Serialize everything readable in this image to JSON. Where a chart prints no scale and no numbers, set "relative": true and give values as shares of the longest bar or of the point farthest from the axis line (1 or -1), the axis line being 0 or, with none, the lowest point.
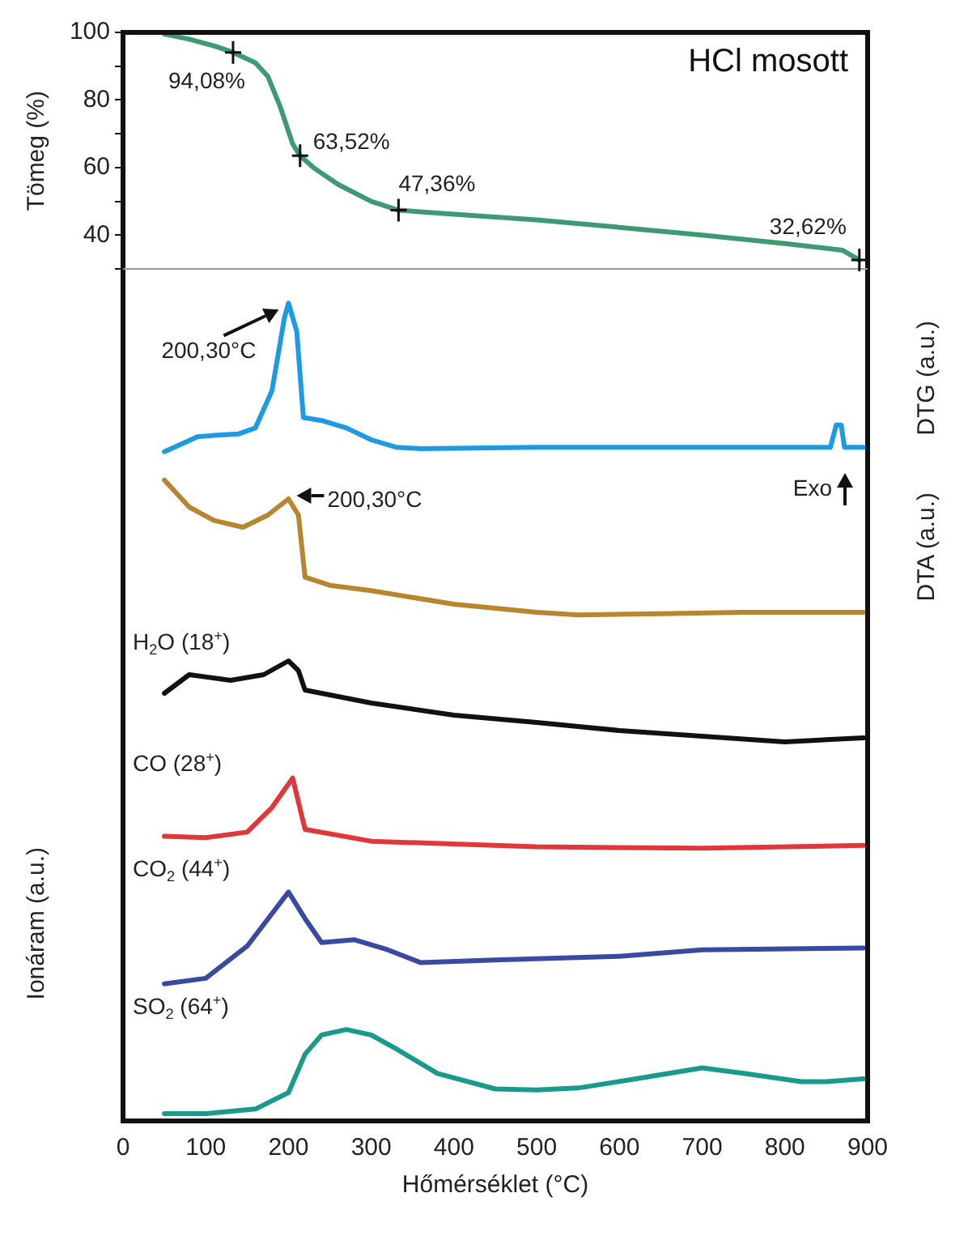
{
  "chart_data": [
    {
      "type": "line",
      "title": "HCl mosott",
      "ylabel": "Tömeg (%)",
      "marker": "none",
      "line_style": "solid",
      "tick_labels": "y",
      "xlim": [
        0,
        900
      ],
      "ylim": [
        30,
        100
      ],
      "yticks": [
        {
          "value": 30,
          "label": null
        },
        40,
        {
          "value": 50,
          "label": null
        },
        60,
        {
          "value": 70,
          "label": null
        },
        80,
        {
          "value": 90,
          "label": null
        },
        100
      ],
      "x": [
        50,
        80,
        110,
        133,
        160,
        175,
        190,
        205,
        214,
        230,
        260,
        300,
        333,
        400,
        500,
        600,
        700,
        800,
        870,
        890
      ],
      "series": [
        {
          "color": "#3e9a72",
          "values": [
            99.5,
            98,
            96,
            94.08,
            91,
            87,
            78,
            67,
            63.52,
            60,
            55,
            50,
            47.36,
            46.2,
            44.5,
            42.3,
            40,
            37.5,
            35.5,
            32.62
          ]
        }
      ],
      "annotations": [
        {
          "text": "94,08%",
          "x": 133,
          "y": 94.08
        },
        {
          "text": "63,52%",
          "x": 214,
          "y": 63.52
        },
        {
          "text": "47,36%",
          "x": 333,
          "y": 47.36
        },
        {
          "text": "32,62%",
          "x": 890,
          "y": 32.62
        }
      ]
    },
    {
      "type": "line",
      "ylabel": "DTG (a.u.)",
      "relative": true,
      "marker": "none",
      "line_style": "solid",
      "tick_labels": false,
      "xlim": [
        0,
        900
      ],
      "x": [
        50,
        70,
        90,
        110,
        140,
        160,
        180,
        195,
        200,
        210,
        218,
        240,
        270,
        300,
        330,
        360,
        500,
        700,
        855,
        862,
        868,
        872,
        895
      ],
      "series": [
        {
          "color": "#1e9be0",
          "values": [
            0,
            0.05,
            0.1,
            0.11,
            0.12,
            0.16,
            0.41,
            0.9,
            1,
            0.81,
            0.23,
            0.21,
            0.16,
            0.08,
            0.03,
            0.02,
            0.03,
            0.03,
            0.03,
            0.18,
            0.18,
            0.03,
            0.03
          ]
        }
      ],
      "annotations": [
        {
          "text": "200,30°C",
          "x": 200,
          "y": 1
        }
      ]
    },
    {
      "type": "line",
      "ylabel": "DTA (a.u.)",
      "relative": true,
      "marker": "none",
      "line_style": "solid",
      "tick_labels": false,
      "xlim": [
        0,
        900
      ],
      "x": [
        50,
        80,
        110,
        145,
        175,
        200,
        212,
        220,
        250,
        300,
        400,
        500,
        550,
        650,
        750,
        895
      ],
      "series": [
        {
          "color": "#b8862e",
          "values": [
            1,
            0.8,
            0.7,
            0.65,
            0.74,
            0.86,
            0.74,
            0.28,
            0.22,
            0.18,
            0.08,
            0.02,
            0,
            0.01,
            0.02,
            0.02
          ]
        }
      ],
      "annotations": [
        {
          "text": "200,30°C",
          "x": 200,
          "y": 0.86
        },
        "Exo"
      ]
    },
    {
      "type": "line",
      "relative": true,
      "marker": "none",
      "line_style": "solid",
      "tick_labels": false,
      "xlim": [
        0,
        900
      ],
      "x": [
        50,
        80,
        130,
        170,
        200,
        212,
        220,
        300,
        400,
        500,
        600,
        700,
        800,
        895
      ],
      "series": [
        {
          "name": "H$_{2}$O (18$^{+}$)",
          "color": "#111111",
          "values": [
            0.6,
            0.83,
            0.76,
            0.83,
            1,
            0.88,
            0.64,
            0.48,
            0.33,
            0.24,
            0.14,
            0.07,
            0,
            0.05
          ]
        }
      ]
    },
    {
      "type": "line",
      "relative": true,
      "marker": "none",
      "line_style": "solid",
      "tick_labels": false,
      "xlim": [
        0,
        900
      ],
      "x": [
        50,
        100,
        150,
        180,
        205,
        220,
        300,
        500,
        700,
        895
      ],
      "series": [
        {
          "name": "CO (28$^{+}$)",
          "color": "#e0383a",
          "values": [
            0.17,
            0.15,
            0.23,
            0.58,
            1,
            0.27,
            0.1,
            0.02,
            0,
            0.04
          ]
        }
      ]
    },
    {
      "type": "line",
      "relative": true,
      "ylabel": "Ionáram (a.u.)",
      "marker": "none",
      "line_style": "solid",
      "tick_labels": false,
      "xlim": [
        0,
        900
      ],
      "x": [
        50,
        100,
        150,
        200,
        220,
        240,
        280,
        320,
        360,
        450,
        600,
        700,
        895
      ],
      "series": [
        {
          "name": "CO$_{2}$ (44$^{+}$)",
          "color": "#3a4aa0",
          "values": [
            0,
            0.06,
            0.41,
            1,
            0.71,
            0.45,
            0.48,
            0.37,
            0.23,
            0.26,
            0.3,
            0.37,
            0.39
          ]
        }
      ]
    },
    {
      "type": "line",
      "relative": true,
      "xlabel": "Hőmérséklet (°C)",
      "marker": "none",
      "line_style": "solid",
      "tick_labels": "x",
      "xlim": [
        0,
        900
      ],
      "xticks": [
        0,
        100,
        200,
        300,
        400,
        500,
        600,
        700,
        800,
        900
      ],
      "x": [
        50,
        100,
        160,
        200,
        220,
        240,
        270,
        300,
        330,
        380,
        450,
        500,
        550,
        620,
        700,
        750,
        820,
        850,
        895
      ],
      "series": [
        {
          "name": "SO$_{2}$ (64$^{+}$)",
          "color": "#1a9a8c",
          "values": [
            0.08,
            0.08,
            0.13,
            0.31,
            0.73,
            0.94,
            1,
            0.94,
            0.79,
            0.52,
            0.35,
            0.34,
            0.36,
            0.46,
            0.58,
            0.52,
            0.43,
            0.43,
            0.46
          ]
        }
      ]
    }
  ]
}
